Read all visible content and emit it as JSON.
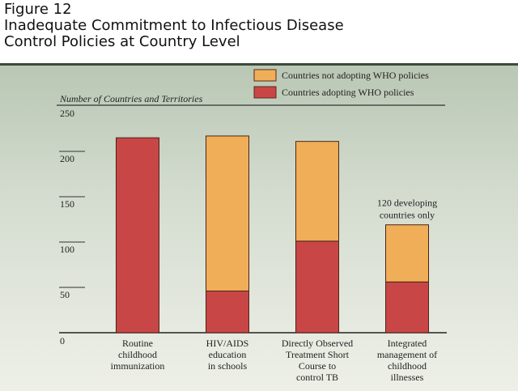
{
  "title_lines": [
    "Figure 12",
    "Inadequate Commitment to Infectious Disease",
    "Control Policies at Country Level"
  ],
  "chart_data": {
    "type": "bar",
    "stacked": true,
    "ylabel": "Number of Countries and Territories",
    "ylim": [
      0,
      250
    ],
    "yticks": [
      0,
      50,
      100,
      150,
      200,
      250
    ],
    "categories": [
      [
        "Routine",
        "childhood",
        "immunization"
      ],
      [
        "HIV/AIDS",
        "education",
        "in schools"
      ],
      [
        "Directly Observed",
        "Treatment Short",
        "Course to",
        "control TB"
      ],
      [
        "Integrated",
        "management of",
        "childhood",
        "illnesses"
      ]
    ],
    "series": [
      {
        "name": "Countries adopting WHO policies",
        "color": "#c94646",
        "values": [
          215,
          46,
          101,
          56
        ]
      },
      {
        "name": "Countries not adopting WHO policies",
        "color": "#f0ae58",
        "values": [
          0,
          171,
          110,
          63
        ]
      }
    ],
    "legend_order": [
      1,
      0
    ],
    "legend": "top-right",
    "annotations": [
      {
        "category_index": 3,
        "lines": [
          "120 developing",
          "countries only"
        ]
      }
    ],
    "grid": false
  }
}
